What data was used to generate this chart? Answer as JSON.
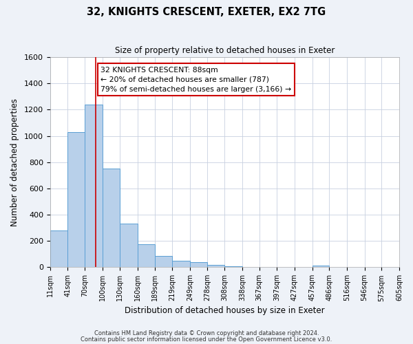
{
  "title": "32, KNIGHTS CRESCENT, EXETER, EX2 7TG",
  "subtitle": "Size of property relative to detached houses in Exeter",
  "xlabel": "Distribution of detached houses by size in Exeter",
  "ylabel": "Number of detached properties",
  "bin_labels": [
    "11sqm",
    "41sqm",
    "70sqm",
    "100sqm",
    "130sqm",
    "160sqm",
    "189sqm",
    "219sqm",
    "249sqm",
    "278sqm",
    "308sqm",
    "338sqm",
    "367sqm",
    "397sqm",
    "427sqm",
    "457sqm",
    "486sqm",
    "516sqm",
    "546sqm",
    "575sqm",
    "605sqm"
  ],
  "bar_heights": [
    280,
    1030,
    1240,
    750,
    330,
    175,
    85,
    50,
    38,
    18,
    5,
    0,
    0,
    0,
    0,
    10,
    0,
    0,
    0,
    0
  ],
  "bar_color": "#b8d0ea",
  "bar_edge_color": "#5a9fd4",
  "vline_x": 88,
  "vline_color": "#cc0000",
  "annotation_line1": "32 KNIGHTS CRESCENT: 88sqm",
  "annotation_line2": "← 20% of detached houses are smaller (787)",
  "annotation_line3": "79% of semi-detached houses are larger (3,166) →",
  "annotation_box_color": "white",
  "annotation_box_edge": "#cc0000",
  "ylim": [
    0,
    1600
  ],
  "yticks": [
    0,
    200,
    400,
    600,
    800,
    1000,
    1200,
    1400,
    1600
  ],
  "footer_line1": "Contains HM Land Registry data © Crown copyright and database right 2024.",
  "footer_line2": "Contains public sector information licensed under the Open Government Licence v3.0.",
  "background_color": "#eef2f8",
  "plot_background": "white",
  "grid_color": "#c8d0e0"
}
